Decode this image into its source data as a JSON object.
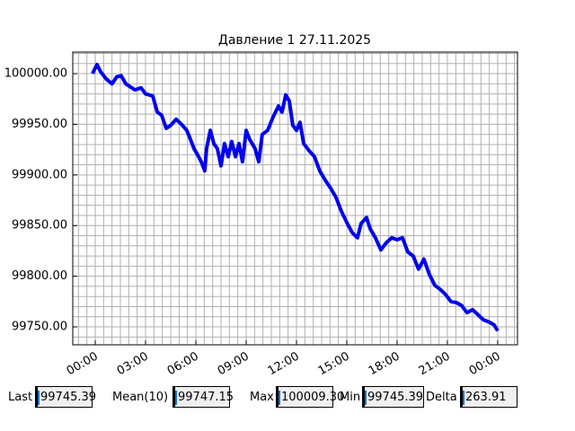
{
  "chart_data": {
    "type": "line",
    "title": "Давление 1 27.11.2025",
    "x": [
      -0.16,
      0.1,
      0.32,
      0.64,
      1.0,
      1.29,
      1.55,
      1.82,
      2.36,
      2.73,
      3.0,
      3.43,
      3.7,
      3.96,
      4.23,
      4.5,
      4.82,
      5.14,
      5.46,
      5.68,
      5.89,
      6.1,
      6.32,
      6.53,
      6.64,
      6.86,
      7.07,
      7.28,
      7.5,
      7.71,
      7.93,
      8.14,
      8.36,
      8.57,
      8.78,
      9.0,
      9.21,
      9.53,
      9.75,
      9.96,
      10.28,
      10.6,
      10.93,
      11.14,
      11.36,
      11.57,
      11.78,
      12.0,
      12.21,
      12.43,
      12.75,
      13.07,
      13.39,
      13.71,
      14.03,
      14.35,
      14.68,
      15.0,
      15.32,
      15.64,
      15.85,
      16.18,
      16.39,
      16.71,
      17.03,
      17.35,
      17.68,
      18.0,
      18.32,
      18.64,
      18.96,
      19.28,
      19.6,
      19.92,
      20.25,
      20.57,
      20.89,
      21.21,
      21.53,
      21.85,
      22.17,
      22.5,
      22.82,
      23.14,
      23.46,
      23.78,
      24.0
    ],
    "series": [
      {
        "color": "#0000ee",
        "values": [
          100000,
          100009,
          100002,
          99995,
          99990,
          99997,
          99998,
          99990,
          99984,
          99986,
          99980,
          99978,
          99962,
          99959,
          99946,
          99949,
          99955,
          99950,
          99944,
          99935,
          99926,
          99920,
          99913,
          99904,
          99926,
          99944,
          99931,
          99926,
          99909,
          99931,
          99918,
          99933,
          99918,
          99931,
          99913,
          99944,
          99935,
          99926,
          99913,
          99940,
          99944,
          99957,
          99968,
          99962,
          99979,
          99973,
          99949,
          99944,
          99952,
          99931,
          99924,
          99918,
          99904,
          99895,
          99887,
          99878,
          99864,
          99853,
          99843,
          99838,
          99852,
          99858,
          99847,
          99838,
          99826,
          99833,
          99838,
          99836,
          99838,
          99824,
          99820,
          99807,
          99817,
          99802,
          99791,
          99787,
          99782,
          99775,
          99774,
          99771,
          99764,
          99767,
          99762,
          99757,
          99755,
          99752,
          99746
        ]
      }
    ],
    "xlim": [
      -1.34,
      25.18
    ],
    "xticks": [
      {
        "value": 0,
        "label": "00:00"
      },
      {
        "value": 3,
        "label": "03:00"
      },
      {
        "value": 6,
        "label": "06:00"
      },
      {
        "value": 9,
        "label": "09:00"
      },
      {
        "value": 12,
        "label": "12:00"
      },
      {
        "value": 15,
        "label": "15:00"
      },
      {
        "value": 18,
        "label": "18:00"
      },
      {
        "value": 21,
        "label": "21:00"
      },
      {
        "value": 24,
        "label": "00:00"
      }
    ],
    "ylim": [
      99732.3,
      100021.3
    ],
    "yticks": [
      {
        "value": 99750,
        "label": "99750.00"
      },
      {
        "value": 99800,
        "label": "99800.00"
      },
      {
        "value": 99850,
        "label": "99850.00"
      },
      {
        "value": 99900,
        "label": "99900.00"
      },
      {
        "value": 99950,
        "label": "99950.00"
      },
      {
        "value": 100000,
        "label": "100000.00"
      }
    ],
    "grid": true
  },
  "status": {
    "fields": [
      {
        "label": "Last",
        "value": "99745.39"
      },
      {
        "label": "Mean(10)",
        "value": "99747.15"
      },
      {
        "label": "Max",
        "value": "100009.30"
      },
      {
        "label": "Min",
        "value": "99745.39"
      },
      {
        "label": "Delta",
        "value": "263.91"
      }
    ]
  }
}
